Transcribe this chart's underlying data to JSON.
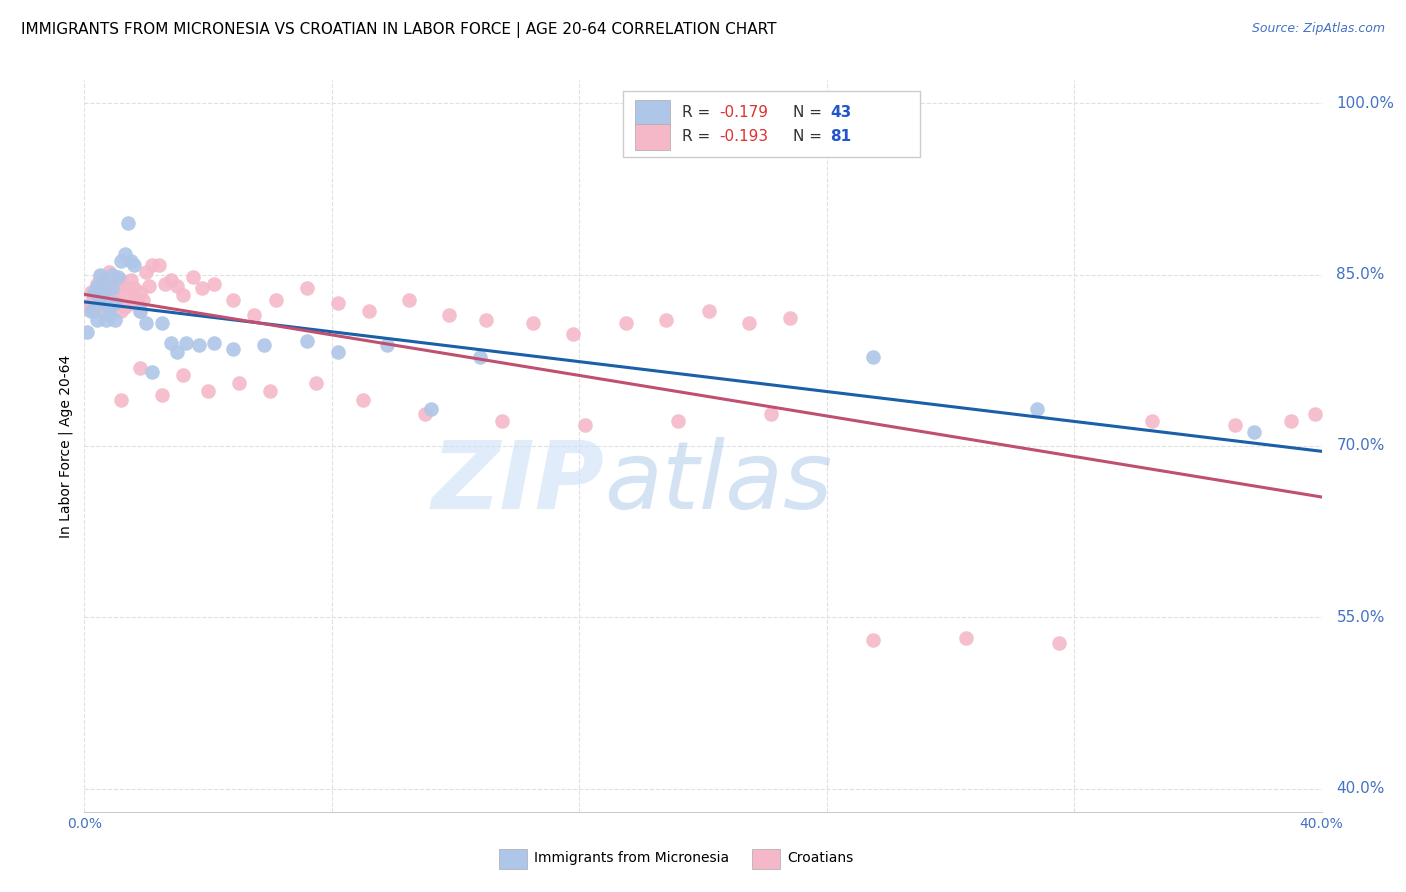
{
  "title": "IMMIGRANTS FROM MICRONESIA VS CROATIAN IN LABOR FORCE | AGE 20-64 CORRELATION CHART",
  "source": "Source: ZipAtlas.com",
  "ylabel": "In Labor Force | Age 20-64",
  "xlim": [
    0.0,
    0.4
  ],
  "ylim": [
    0.38,
    1.02
  ],
  "ytick_labels_right": [
    "100.0%",
    "85.0%",
    "70.0%",
    "55.0%",
    "40.0%"
  ],
  "ytick_positions_right": [
    1.0,
    0.85,
    0.7,
    0.55,
    0.4
  ],
  "micronesia_color": "#aec6e8",
  "croatian_color": "#f4b8c8",
  "micronesia_line_color": "#1a5fa8",
  "croatian_line_color": "#c05070",
  "micronesia_r": -0.179,
  "micronesia_n": 43,
  "croatian_r": -0.193,
  "croatian_n": 81,
  "micronesia_x": [
    0.001,
    0.002,
    0.003,
    0.003,
    0.004,
    0.004,
    0.005,
    0.005,
    0.006,
    0.006,
    0.007,
    0.007,
    0.008,
    0.008,
    0.009,
    0.009,
    0.01,
    0.01,
    0.011,
    0.012,
    0.013,
    0.014,
    0.015,
    0.016,
    0.018,
    0.02,
    0.022,
    0.025,
    0.028,
    0.03,
    0.033,
    0.037,
    0.042,
    0.048,
    0.058,
    0.072,
    0.082,
    0.098,
    0.112,
    0.128,
    0.255,
    0.308,
    0.378
  ],
  "micronesia_y": [
    0.8,
    0.818,
    0.835,
    0.82,
    0.81,
    0.84,
    0.83,
    0.85,
    0.835,
    0.845,
    0.825,
    0.81,
    0.82,
    0.815,
    0.838,
    0.85,
    0.825,
    0.81,
    0.848,
    0.862,
    0.868,
    0.895,
    0.862,
    0.858,
    0.818,
    0.808,
    0.765,
    0.808,
    0.79,
    0.782,
    0.79,
    0.788,
    0.79,
    0.785,
    0.788,
    0.792,
    0.782,
    0.788,
    0.732,
    0.778,
    0.778,
    0.732,
    0.712
  ],
  "croatian_x": [
    0.001,
    0.002,
    0.002,
    0.003,
    0.003,
    0.004,
    0.004,
    0.005,
    0.005,
    0.006,
    0.006,
    0.007,
    0.007,
    0.008,
    0.008,
    0.009,
    0.009,
    0.01,
    0.01,
    0.011,
    0.011,
    0.012,
    0.012,
    0.013,
    0.013,
    0.014,
    0.015,
    0.015,
    0.016,
    0.017,
    0.018,
    0.018,
    0.019,
    0.02,
    0.021,
    0.022,
    0.024,
    0.026,
    0.028,
    0.03,
    0.032,
    0.035,
    0.038,
    0.042,
    0.048,
    0.055,
    0.062,
    0.072,
    0.082,
    0.092,
    0.105,
    0.118,
    0.13,
    0.145,
    0.158,
    0.175,
    0.188,
    0.202,
    0.215,
    0.228,
    0.012,
    0.018,
    0.025,
    0.032,
    0.04,
    0.05,
    0.06,
    0.075,
    0.09,
    0.11,
    0.135,
    0.162,
    0.192,
    0.222,
    0.255,
    0.285,
    0.315,
    0.345,
    0.372,
    0.39,
    0.398
  ],
  "croatian_y": [
    0.82,
    0.835,
    0.825,
    0.818,
    0.83,
    0.842,
    0.822,
    0.838,
    0.848,
    0.828,
    0.818,
    0.84,
    0.828,
    0.852,
    0.825,
    0.835,
    0.825,
    0.838,
    0.825,
    0.842,
    0.828,
    0.845,
    0.818,
    0.835,
    0.822,
    0.838,
    0.845,
    0.825,
    0.838,
    0.828,
    0.835,
    0.818,
    0.828,
    0.852,
    0.84,
    0.858,
    0.858,
    0.842,
    0.845,
    0.84,
    0.832,
    0.848,
    0.838,
    0.842,
    0.828,
    0.815,
    0.828,
    0.838,
    0.825,
    0.818,
    0.828,
    0.815,
    0.81,
    0.808,
    0.798,
    0.808,
    0.81,
    0.818,
    0.808,
    0.812,
    0.74,
    0.768,
    0.745,
    0.762,
    0.748,
    0.755,
    0.748,
    0.755,
    0.74,
    0.728,
    0.722,
    0.718,
    0.722,
    0.728,
    0.53,
    0.532,
    0.528,
    0.722,
    0.718,
    0.722,
    0.728
  ],
  "background_color": "#ffffff",
  "grid_color": "#e0e0e0",
  "title_fontsize": 11,
  "axis_label_fontsize": 10,
  "tick_fontsize": 10,
  "source_fontsize": 9
}
